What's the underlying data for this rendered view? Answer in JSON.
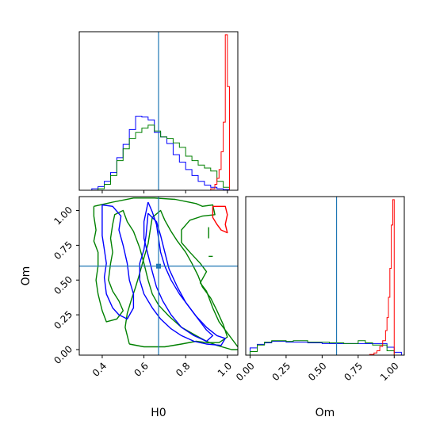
{
  "chart_data": {
    "type": "corner",
    "parameters": [
      "H0",
      "Om"
    ],
    "xlabels": [
      "H0",
      "Om"
    ],
    "ylabel": "Om",
    "truth": {
      "H0": 0.67,
      "Om": 0.6
    },
    "colors": {
      "blue": "#0000ff",
      "green": "#008000",
      "red": "#ff0000",
      "truth": "#1f77b4"
    },
    "panels": {
      "h0_hist": {
        "xlim": [
          0.29,
          1.05
        ],
        "ticks": [
          0.4,
          0.6,
          0.8,
          1.0
        ],
        "series": [
          {
            "color": "blue",
            "bins": [
              0.35,
              0.38,
              0.41,
              0.44,
              0.47,
              0.5,
              0.53,
              0.56,
              0.59,
              0.62,
              0.65,
              0.68,
              0.71,
              0.74,
              0.77,
              0.8,
              0.83,
              0.86,
              0.89,
              0.92,
              0.95,
              0.98,
              1.01,
              1.04
            ],
            "counts": [
              2,
              5,
              12,
              24,
              44,
              62,
              82,
              100,
              99,
              95,
              78,
              72,
              63,
              48,
              38,
              28,
              20,
              12,
              7,
              4,
              2,
              1,
              0
            ]
          },
          {
            "color": "green",
            "bins": [
              0.38,
              0.41,
              0.44,
              0.47,
              0.5,
              0.53,
              0.56,
              0.59,
              0.62,
              0.65,
              0.68,
              0.71,
              0.74,
              0.77,
              0.8,
              0.83,
              0.86,
              0.89,
              0.92,
              0.95,
              0.98,
              1.01,
              1.04
            ],
            "counts": [
              2,
              8,
              20,
              40,
              56,
              70,
              78,
              84,
              88,
              80,
              72,
              70,
              64,
              58,
              46,
              40,
              34,
              30,
              26,
              12,
              4,
              0
            ]
          },
          {
            "color": "red",
            "bins": [
              0.9,
              0.92,
              0.94,
              0.95,
              0.96,
              0.97,
              0.98,
              0.99,
              1.0,
              1.01,
              1.02
            ],
            "counts": [
              0,
              2,
              8,
              16,
              28,
              52,
              92,
              210,
              140,
              0
            ]
          }
        ]
      },
      "om_hist": {
        "xlim": [
          -0.03,
          1.07
        ],
        "ticks": [
          0.0,
          0.25,
          0.5,
          0.75,
          1.0
        ],
        "series": [
          {
            "color": "blue",
            "bins": [
              0.0,
              0.05,
              0.1,
              0.15,
              0.2,
              0.25,
              0.3,
              0.35,
              0.4,
              0.45,
              0.5,
              0.55,
              0.6,
              0.65,
              0.7,
              0.75,
              0.8,
              0.85,
              0.9,
              0.95,
              1.0,
              1.05
            ],
            "counts": [
              10,
              15,
              17,
              19,
              19,
              18,
              18,
              18,
              17,
              17,
              16,
              16,
              16,
              16,
              16,
              16,
              16,
              16,
              16,
              11,
              4
            ]
          },
          {
            "color": "green",
            "bins": [
              0.0,
              0.05,
              0.1,
              0.15,
              0.2,
              0.25,
              0.3,
              0.35,
              0.4,
              0.45,
              0.5,
              0.55,
              0.6,
              0.65,
              0.7,
              0.75,
              0.8,
              0.85,
              0.9,
              0.95,
              1.0,
              1.05
            ],
            "counts": [
              5,
              14,
              18,
              20,
              20,
              19,
              20,
              20,
              18,
              18,
              18,
              17,
              17,
              16,
              16,
              20,
              17,
              14,
              14,
              6,
              0
            ]
          },
          {
            "color": "red",
            "bins": [
              0.8,
              0.83,
              0.86,
              0.88,
              0.9,
              0.92,
              0.94,
              0.95,
              0.96,
              0.97,
              0.98,
              0.99,
              1.0,
              1.01
            ],
            "counts": [
              0,
              1,
              3,
              6,
              12,
              20,
              34,
              52,
              80,
              120,
              180,
              215,
              0
            ]
          }
        ]
      },
      "scatter": {
        "xlim": [
          0.29,
          1.05
        ],
        "ylim": [
          -0.04,
          1.1
        ],
        "xticks": [
          0.4,
          0.6,
          0.8,
          1.0
        ],
        "yticks": [
          0.0,
          0.25,
          0.5,
          0.75,
          1.0
        ],
        "contours": [
          {
            "color": "green",
            "points": [
              [
                0.36,
                1.03
              ],
              [
                0.45,
                1.06
              ],
              [
                0.55,
                1.09
              ],
              [
                0.65,
                1.09
              ],
              [
                0.75,
                1.08
              ],
              [
                0.85,
                1.05
              ],
              [
                0.88,
                1.03
              ],
              [
                0.93,
                1.04
              ],
              [
                0.94,
                0.97
              ],
              [
                0.88,
                0.96
              ],
              [
                0.82,
                0.93
              ],
              [
                0.78,
                0.86
              ],
              [
                0.78,
                0.77
              ],
              [
                0.82,
                0.7
              ],
              [
                0.87,
                0.62
              ],
              [
                0.9,
                0.56
              ],
              [
                0.87,
                0.48
              ],
              [
                0.9,
                0.42
              ],
              [
                0.93,
                0.3
              ],
              [
                0.96,
                0.2
              ],
              [
                1.0,
                0.12
              ],
              [
                1.03,
                0.06
              ],
              [
                1.06,
                0.0
              ],
              [
                1.02,
                0.0
              ],
              [
                0.95,
                0.03
              ],
              [
                0.9,
                0.06
              ],
              [
                0.85,
                0.1
              ],
              [
                0.78,
                0.16
              ],
              [
                0.72,
                0.24
              ],
              [
                0.67,
                0.32
              ],
              [
                0.64,
                0.4
              ],
              [
                0.62,
                0.5
              ],
              [
                0.6,
                0.62
              ],
              [
                0.58,
                0.73
              ],
              [
                0.55,
                0.85
              ],
              [
                0.52,
                0.92
              ],
              [
                0.5,
                1.0
              ],
              [
                0.46,
                0.97
              ],
              [
                0.45,
                0.9
              ],
              [
                0.44,
                0.8
              ],
              [
                0.45,
                0.7
              ],
              [
                0.44,
                0.62
              ],
              [
                0.43,
                0.5
              ],
              [
                0.45,
                0.42
              ],
              [
                0.48,
                0.35
              ],
              [
                0.5,
                0.28
              ],
              [
                0.47,
                0.22
              ],
              [
                0.42,
                0.2
              ],
              [
                0.4,
                0.28
              ],
              [
                0.38,
                0.4
              ],
              [
                0.37,
                0.5
              ],
              [
                0.38,
                0.6
              ],
              [
                0.38,
                0.7
              ],
              [
                0.36,
                0.78
              ],
              [
                0.37,
                0.86
              ],
              [
                0.36,
                0.96
              ],
              [
                0.36,
                1.03
              ]
            ]
          },
          {
            "color": "green",
            "points": [
              [
                0.53,
                0.04
              ],
              [
                0.6,
                0.02
              ],
              [
                0.7,
                0.02
              ],
              [
                0.78,
                0.04
              ],
              [
                0.85,
                0.06
              ],
              [
                0.9,
                0.05
              ],
              [
                0.96,
                0.05
              ],
              [
                1.0,
                0.09
              ],
              [
                0.98,
                0.18
              ],
              [
                0.95,
                0.28
              ],
              [
                0.92,
                0.37
              ],
              [
                0.88,
                0.45
              ],
              [
                0.86,
                0.53
              ],
              [
                0.83,
                0.62
              ],
              [
                0.8,
                0.7
              ],
              [
                0.76,
                0.78
              ],
              [
                0.73,
                0.85
              ],
              [
                0.7,
                0.93
              ],
              [
                0.68,
                1.0
              ],
              [
                0.64,
                0.95
              ],
              [
                0.63,
                0.86
              ],
              [
                0.62,
                0.76
              ],
              [
                0.6,
                0.66
              ],
              [
                0.58,
                0.55
              ],
              [
                0.56,
                0.45
              ],
              [
                0.54,
                0.36
              ],
              [
                0.52,
                0.26
              ],
              [
                0.51,
                0.16
              ],
              [
                0.53,
                0.04
              ]
            ]
          },
          {
            "color": "blue",
            "points": [
              [
                0.4,
                1.04
              ],
              [
                0.45,
                1.03
              ],
              [
                0.49,
                0.96
              ],
              [
                0.48,
                0.86
              ],
              [
                0.5,
                0.75
              ],
              [
                0.52,
                0.62
              ],
              [
                0.53,
                0.5
              ],
              [
                0.55,
                0.4
              ],
              [
                0.55,
                0.3
              ],
              [
                0.52,
                0.22
              ],
              [
                0.48,
                0.25
              ],
              [
                0.45,
                0.3
              ],
              [
                0.42,
                0.4
              ],
              [
                0.41,
                0.52
              ],
              [
                0.42,
                0.62
              ],
              [
                0.41,
                0.72
              ],
              [
                0.4,
                0.82
              ],
              [
                0.4,
                0.92
              ],
              [
                0.4,
                1.04
              ]
            ]
          },
          {
            "color": "blue",
            "points": [
              [
                0.62,
                0.98
              ],
              [
                0.66,
                0.92
              ],
              [
                0.68,
                0.82
              ],
              [
                0.7,
                0.7
              ],
              [
                0.72,
                0.58
              ],
              [
                0.76,
                0.45
              ],
              [
                0.8,
                0.34
              ],
              [
                0.85,
                0.24
              ],
              [
                0.9,
                0.16
              ],
              [
                0.95,
                0.1
              ],
              [
                0.99,
                0.08
              ],
              [
                0.97,
                0.03
              ],
              [
                0.9,
                0.04
              ],
              [
                0.84,
                0.06
              ],
              [
                0.78,
                0.1
              ],
              [
                0.73,
                0.15
              ],
              [
                0.68,
                0.22
              ],
              [
                0.64,
                0.3
              ],
              [
                0.6,
                0.4
              ],
              [
                0.58,
                0.5
              ],
              [
                0.58,
                0.62
              ],
              [
                0.6,
                0.72
              ],
              [
                0.61,
                0.82
              ],
              [
                0.62,
                0.98
              ]
            ]
          },
          {
            "color": "blue",
            "points": [
              [
                0.62,
                1.06
              ],
              [
                0.64,
                0.99
              ],
              [
                0.66,
                0.9
              ],
              [
                0.67,
                0.8
              ],
              [
                0.68,
                0.7
              ],
              [
                0.7,
                0.6
              ],
              [
                0.73,
                0.5
              ],
              [
                0.77,
                0.4
              ],
              [
                0.82,
                0.3
              ],
              [
                0.86,
                0.22
              ],
              [
                0.9,
                0.14
              ],
              [
                0.93,
                0.1
              ],
              [
                0.9,
                0.06
              ],
              [
                0.84,
                0.1
              ],
              [
                0.78,
                0.16
              ],
              [
                0.73,
                0.25
              ],
              [
                0.69,
                0.35
              ],
              [
                0.66,
                0.45
              ],
              [
                0.64,
                0.56
              ],
              [
                0.62,
                0.68
              ],
              [
                0.6,
                0.8
              ],
              [
                0.6,
                0.92
              ],
              [
                0.62,
                1.06
              ]
            ]
          },
          {
            "color": "red",
            "points": [
              [
                0.93,
                1.03
              ],
              [
                0.99,
                1.03
              ],
              [
                1.0,
                0.97
              ],
              [
                0.99,
                0.9
              ],
              [
                1.0,
                0.84
              ],
              [
                0.97,
                0.86
              ],
              [
                0.95,
                0.9
              ],
              [
                0.93,
                0.95
              ],
              [
                0.93,
                1.03
              ]
            ]
          },
          {
            "color": "green",
            "points": [
              [
                0.91,
                0.88
              ],
              [
                0.91,
                0.8
              ]
            ]
          },
          {
            "color": "green",
            "points": [
              [
                0.91,
                0.67
              ],
              [
                0.93,
                0.67
              ]
            ]
          }
        ]
      }
    }
  }
}
